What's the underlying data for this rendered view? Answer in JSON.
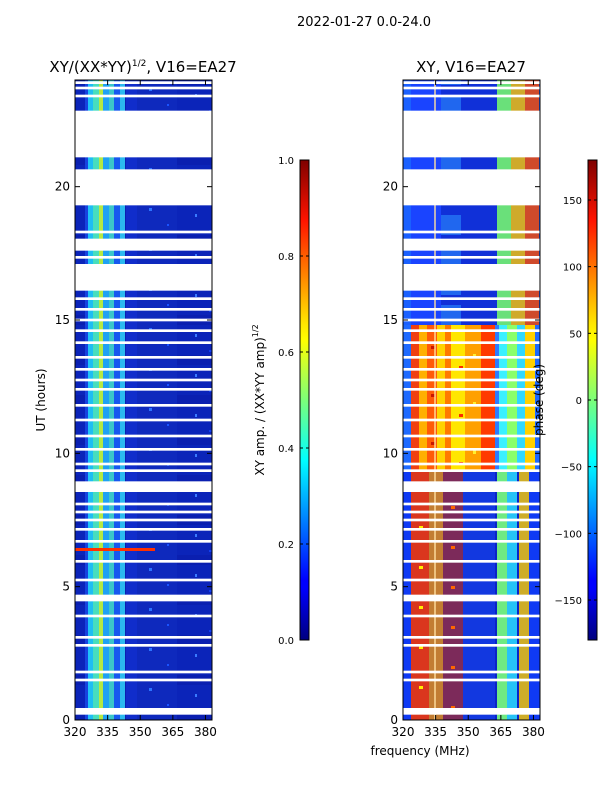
{
  "figure_title": "2022-01-27 0.0-24.0",
  "x_axis_label": "frequency (MHz)",
  "chart_data": [
    {
      "type": "heatmap",
      "title_main": "XY/(XX*YY)",
      "title_sup": "1/2",
      "title_tail": ", V16=EA27",
      "xlabel": "frequency (MHz)",
      "ylabel": "UT (hours)",
      "xlim": [
        320,
        383
      ],
      "ylim": [
        0,
        24
      ],
      "xticks": [
        320,
        335,
        350,
        365,
        380
      ],
      "yticks": [
        0,
        5,
        10,
        15,
        20
      ],
      "colorbar": {
        "label_main": "XY amp. / (XX*YY amp)",
        "label_sup": "1/2",
        "range": [
          0.0,
          1.0
        ],
        "ticks": [
          "0.0",
          "0.2",
          "0.4",
          "0.6",
          "0.8",
          "1.0"
        ],
        "colormap": "jet"
      }
    },
    {
      "type": "heatmap",
      "title_main": "XY, V16=EA27",
      "xlabel": "frequency (MHz)",
      "xlim": [
        320,
        383
      ],
      "ylim": [
        0,
        24
      ],
      "xticks": [
        320,
        335,
        350,
        365,
        380
      ],
      "yticks": [
        0,
        5,
        10,
        15,
        20
      ],
      "colorbar": {
        "label_main": "phase (deg)",
        "range": [
          -180,
          180
        ],
        "ticks": [
          "-150",
          "-100",
          "-50",
          "0",
          "50",
          "100",
          "150"
        ],
        "colormap": "jet"
      }
    }
  ],
  "flagged_ut_gaps_hours": [
    [
      0.2,
      0.45
    ],
    [
      1.45,
      1.55
    ],
    [
      1.75,
      1.85
    ],
    [
      2.75,
      2.85
    ],
    [
      3.05,
      3.15
    ],
    [
      3.85,
      3.95
    ],
    [
      4.45,
      4.7
    ],
    [
      5.2,
      5.3
    ],
    [
      5.9,
      6.0
    ],
    [
      6.65,
      6.75
    ],
    [
      7.1,
      7.2
    ],
    [
      7.45,
      7.55
    ],
    [
      7.75,
      7.85
    ],
    [
      8.05,
      8.15
    ],
    [
      8.55,
      8.95
    ],
    [
      9.3,
      9.4
    ],
    [
      9.55,
      9.65
    ],
    [
      10.1,
      10.2
    ],
    [
      10.6,
      10.7
    ],
    [
      11.2,
      11.3
    ],
    [
      11.75,
      11.85
    ],
    [
      12.35,
      12.45
    ],
    [
      12.7,
      12.8
    ],
    [
      13.1,
      13.2
    ],
    [
      13.55,
      13.65
    ],
    [
      14.1,
      14.2
    ],
    [
      14.55,
      14.65
    ],
    [
      14.95,
      15.05
    ],
    [
      15.35,
      15.45
    ],
    [
      15.75,
      15.85
    ],
    [
      16.1,
      17.1
    ],
    [
      17.3,
      17.4
    ],
    [
      17.6,
      18.05
    ],
    [
      18.25,
      18.35
    ],
    [
      19.3,
      20.65
    ],
    [
      21.1,
      22.85
    ],
    [
      23.35,
      23.45
    ],
    [
      23.65,
      23.75
    ],
    [
      23.85,
      23.95
    ]
  ]
}
